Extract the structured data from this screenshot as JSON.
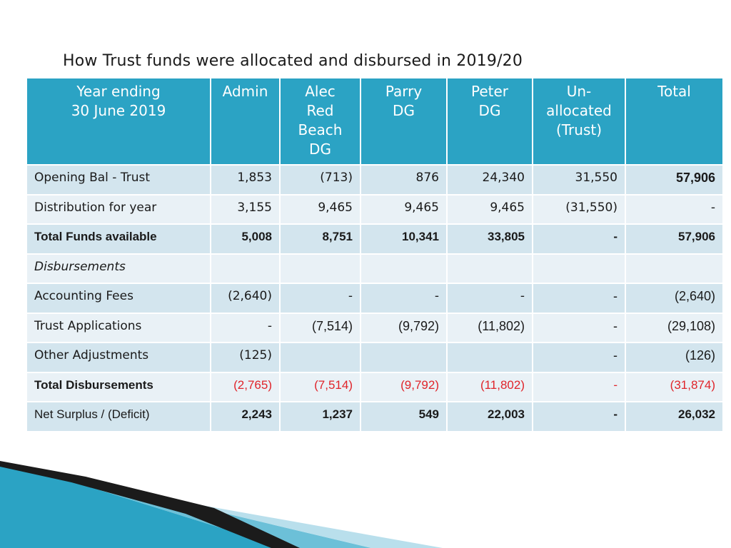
{
  "title": "How Trust funds were allocated and disbursed in 2019/20",
  "headers": [
    {
      "lines": [
        "Year ending",
        "30 June 2019"
      ]
    },
    {
      "lines": [
        "Admin"
      ]
    },
    {
      "lines": [
        "Alec",
        "Red",
        "Beach",
        "DG"
      ]
    },
    {
      "lines": [
        "Parry",
        "DG"
      ]
    },
    {
      "lines": [
        "Peter",
        "DG"
      ]
    },
    {
      "lines": [
        "Un-",
        "allocated",
        "(Trust)"
      ]
    },
    {
      "lines": [
        "Total"
      ]
    }
  ],
  "rows": [
    {
      "label": "Opening Bal - Trust",
      "cells": [
        "1,853",
        "(713)",
        "876",
        "24,340",
        "31,550",
        "57,906"
      ]
    },
    {
      "label": "Distribution for year",
      "cells": [
        "3,155",
        "9,465",
        "9,465",
        "9,465",
        "(31,550)",
        "-"
      ]
    },
    {
      "label": "Total Funds available",
      "cells": [
        "5,008",
        "8,751",
        "10,341",
        "33,805",
        "-",
        "57,906"
      ]
    },
    {
      "label": "Disbursements",
      "cells": [
        "",
        "",
        "",
        "",
        "",
        ""
      ]
    },
    {
      "label": "Accounting Fees",
      "cells": [
        "(2,640)",
        "-",
        "-",
        "-",
        "-",
        "(2,640)"
      ]
    },
    {
      "label": "Trust Applications",
      "cells": [
        "-",
        "(7,514)",
        "(9,792)",
        "(11,802)",
        "-",
        "(29,108)"
      ]
    },
    {
      "label": "Other Adjustments",
      "cells": [
        "(125)",
        "",
        "",
        "",
        "-",
        "(126)"
      ]
    },
    {
      "label": "Total Disbursements",
      "cells": [
        "(2,765)",
        "(7,514)",
        "(9,792)",
        "(11,802)",
        "-",
        "(31,874)"
      ]
    },
    {
      "label": "Net Surplus / (Deficit)",
      "cells": [
        "2,243",
        "1,237",
        "549",
        "22,003",
        "-",
        "26,032"
      ]
    }
  ],
  "colors": {
    "header_bg": "#2ba3c4",
    "row_shade_dark": "#d3e5ee",
    "row_shade_light": "#e9f1f6",
    "negative": "#e0242a"
  }
}
